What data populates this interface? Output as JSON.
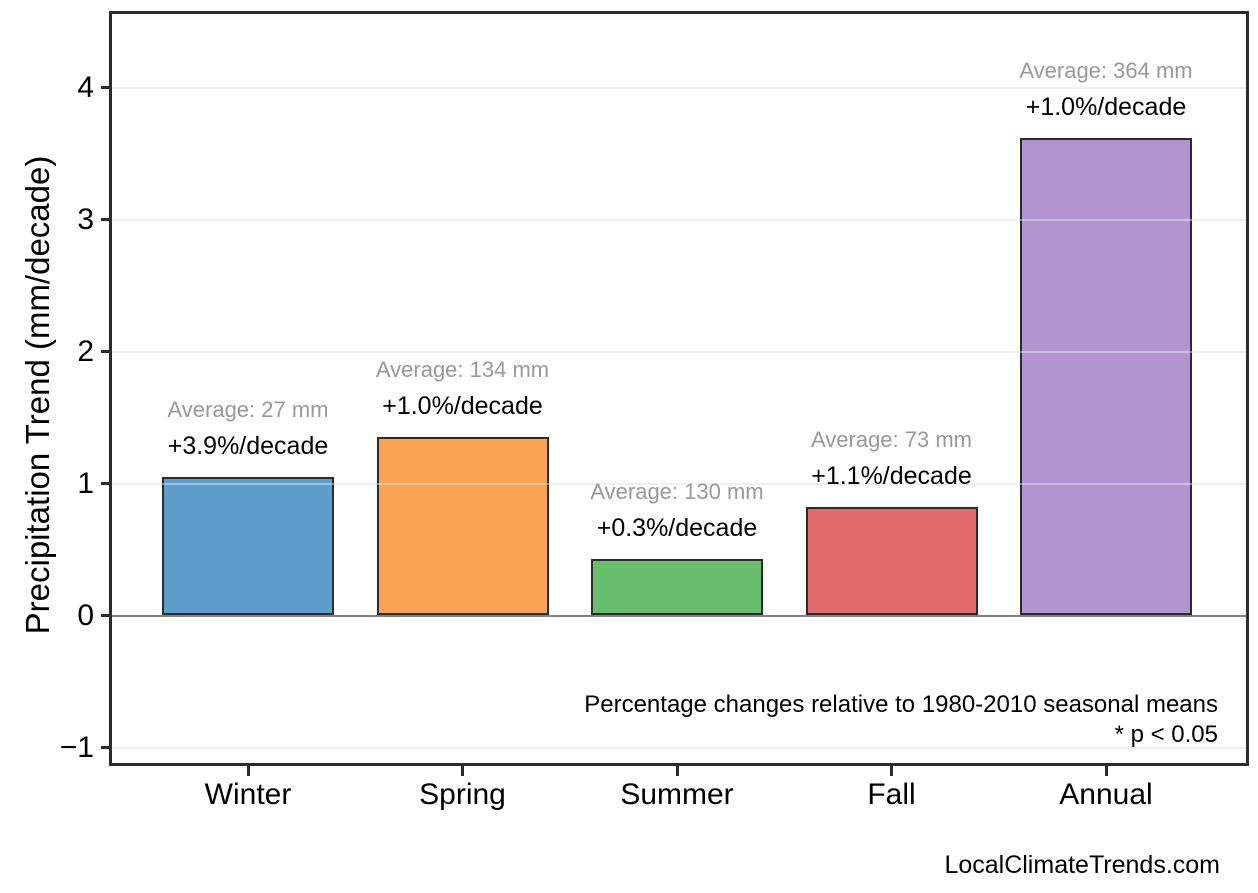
{
  "chart_data": {
    "type": "bar",
    "title": "",
    "ylabel": "Precipitation Trend (mm/decade)",
    "xlabel": "",
    "categories": [
      "Winter",
      "Spring",
      "Summer",
      "Fall",
      "Annual"
    ],
    "values": [
      1.05,
      1.35,
      0.43,
      0.82,
      3.62
    ],
    "bar_colors": [
      "#5D9DCB",
      "#FBA456",
      "#68BE6C",
      "#E06B6B",
      "#B193CF"
    ],
    "bar_edge_color": "#2b2b2b",
    "averages_mm": [
      27,
      134,
      130,
      73,
      364
    ],
    "annotations": [
      {
        "average": "Average: 27 mm",
        "trend": "+3.9%/decade"
      },
      {
        "average": "Average: 134 mm",
        "trend": "+1.0%/decade"
      },
      {
        "average": "Average: 130 mm",
        "trend": "+0.3%/decade"
      },
      {
        "average": "Average: 73 mm",
        "trend": "+1.1%/decade"
      },
      {
        "average": "Average: 364 mm",
        "trend": "+1.0%/decade"
      }
    ],
    "y_ticks": [
      {
        "label": "4",
        "value": 4
      },
      {
        "label": "3",
        "value": 3
      },
      {
        "label": "2",
        "value": 2
      },
      {
        "label": "1",
        "value": 1
      },
      {
        "label": "0",
        "value": 0
      },
      {
        "label": "−1",
        "value": -1
      }
    ],
    "ylim": [
      -1.12,
      4.56
    ],
    "grid": "horizontal",
    "legend": "none",
    "annotation_avg_color": "#999999",
    "annotation_trend_color": "#000000",
    "notes": {
      "line1": "Percentage changes relative to 1980-2010 seasonal means",
      "line2": "* p < 0.05"
    },
    "source": "LocalClimateTrends.com"
  }
}
